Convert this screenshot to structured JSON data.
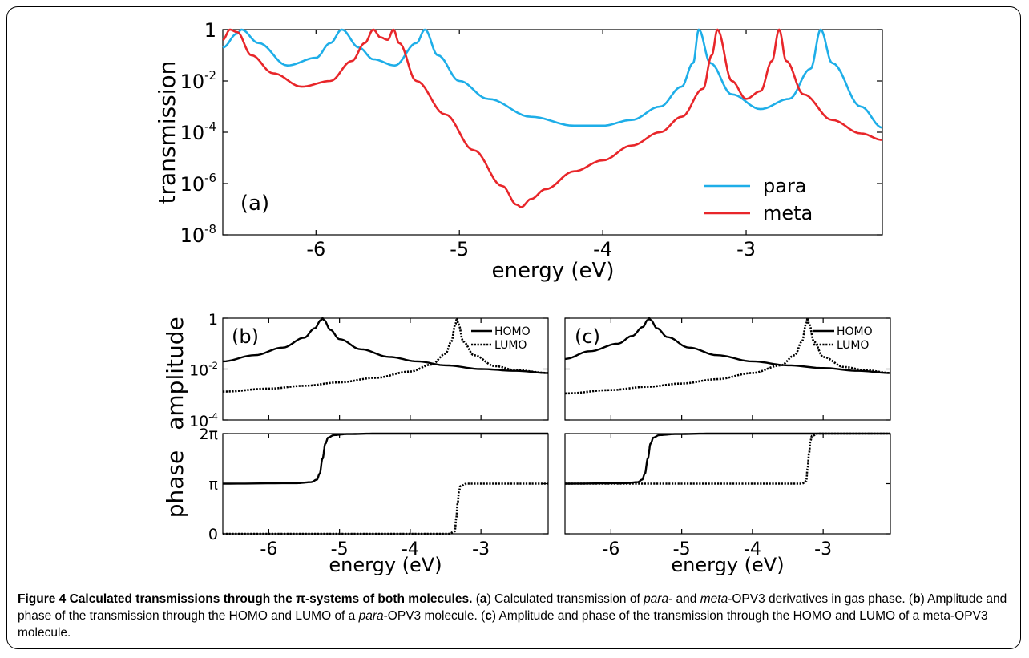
{
  "chart_data": [
    {
      "type": "line",
      "panel_label": "(a)",
      "xlabel": "energy (eV)",
      "ylabel": "transmission",
      "xlim": [
        -6.65,
        -2.05
      ],
      "y_scale": "log",
      "ylim": [
        1e-08,
        1
      ],
      "x_ticks": [
        "-6",
        "-5",
        "-4",
        "-3"
      ],
      "y_ticks": [
        {
          "base": "1",
          "exp": ""
        },
        {
          "base": "10",
          "exp": "-2"
        },
        {
          "base": "10",
          "exp": "-4"
        },
        {
          "base": "10",
          "exp": "-6"
        },
        {
          "base": "10",
          "exp": "-8"
        }
      ],
      "legend_position": "bottom-right",
      "series": [
        {
          "name": "para",
          "color": "#1eaee8",
          "x": [
            -6.65,
            -6.55,
            -6.52,
            -6.4,
            -6.2,
            -6.0,
            -5.9,
            -5.82,
            -5.7,
            -5.6,
            -5.45,
            -5.3,
            -5.24,
            -5.15,
            -5.0,
            -4.8,
            -4.5,
            -4.2,
            -4.0,
            -3.8,
            -3.6,
            -3.45,
            -3.37,
            -3.33,
            -3.25,
            -3.1,
            -2.9,
            -2.7,
            -2.55,
            -2.48,
            -2.4,
            -2.2,
            -2.05
          ],
          "y": [
            0.2,
            0.7,
            1.0,
            0.3,
            0.04,
            0.08,
            0.3,
            1.0,
            0.2,
            0.07,
            0.04,
            0.3,
            1.0,
            0.1,
            0.01,
            0.002,
            0.0004,
            0.00018,
            0.00018,
            0.0003,
            0.001,
            0.006,
            0.05,
            1.0,
            0.05,
            0.003,
            0.0008,
            0.002,
            0.03,
            1.0,
            0.05,
            0.001,
            0.00015
          ]
        },
        {
          "name": "meta",
          "color": "#e8262a",
          "x": [
            -6.65,
            -6.6,
            -6.55,
            -6.45,
            -6.3,
            -6.1,
            -5.9,
            -5.75,
            -5.66,
            -5.6,
            -5.55,
            -5.5,
            -5.46,
            -5.42,
            -5.3,
            -5.1,
            -4.9,
            -4.7,
            -4.6,
            -4.57,
            -4.5,
            -4.4,
            -4.2,
            -4.0,
            -3.8,
            -3.6,
            -3.45,
            -3.3,
            -3.24,
            -3.2,
            -3.1,
            -3.0,
            -2.9,
            -2.82,
            -2.77,
            -2.72,
            -2.6,
            -2.4,
            -2.2,
            -2.05
          ],
          "y": [
            0.4,
            1.0,
            0.8,
            0.1,
            0.02,
            0.006,
            0.01,
            0.06,
            0.3,
            1.0,
            0.5,
            0.4,
            1.0,
            0.3,
            0.01,
            0.0005,
            2e-05,
            8e-07,
            1.5e-07,
            1.2e-07,
            2.5e-07,
            6e-07,
            3e-06,
            8e-06,
            3e-05,
            0.0001,
            0.0004,
            0.005,
            0.1,
            1.0,
            0.01,
            0.002,
            0.004,
            0.06,
            1.0,
            0.06,
            0.003,
            0.0003,
            9e-05,
            5e-05
          ]
        }
      ]
    },
    {
      "type": "line",
      "panel_label": "(b)",
      "xlabel": "energy (eV)",
      "ylabel_top": "amplitude",
      "ylabel_bottom": "phase",
      "xlim": [
        -6.65,
        -2.05
      ],
      "x_ticks": [
        "-6",
        "-5",
        "-4",
        "-3"
      ],
      "amplitude_y_scale": "log",
      "amplitude_ylim": [
        0.0001,
        1
      ],
      "amplitude_y_ticks": [
        {
          "base": "1",
          "exp": ""
        },
        {
          "base": "10",
          "exp": "-2"
        },
        {
          "base": "10",
          "exp": "-4"
        }
      ],
      "phase_y_ticks": [
        "2π",
        "π",
        "0"
      ],
      "legend_position": "top-right",
      "amplitude_series": [
        {
          "name": "HOMO",
          "style": "solid",
          "x": [
            -6.65,
            -6.2,
            -5.8,
            -5.5,
            -5.35,
            -5.26,
            -5.24,
            -5.22,
            -5.13,
            -5.0,
            -4.7,
            -4.3,
            -3.9,
            -3.5,
            -3.0,
            -2.5,
            -2.05
          ],
          "y": [
            0.02,
            0.035,
            0.07,
            0.17,
            0.4,
            0.85,
            1.0,
            0.85,
            0.35,
            0.15,
            0.06,
            0.03,
            0.02,
            0.014,
            0.01,
            0.0085,
            0.007
          ]
        },
        {
          "name": "LUMO",
          "style": "dotted",
          "x": [
            -6.65,
            -6.0,
            -5.5,
            -5.0,
            -4.5,
            -4.0,
            -3.7,
            -3.5,
            -3.42,
            -3.36,
            -3.34,
            -3.32,
            -3.25,
            -3.1,
            -2.8,
            -2.5,
            -2.05
          ],
          "y": [
            0.0013,
            0.0017,
            0.0022,
            0.003,
            0.0045,
            0.008,
            0.015,
            0.04,
            0.12,
            0.6,
            1.0,
            0.6,
            0.12,
            0.035,
            0.013,
            0.009,
            0.007
          ]
        }
      ],
      "phase_series": [
        {
          "name": "HOMO",
          "style": "solid",
          "x": [
            -6.65,
            -5.6,
            -5.4,
            -5.32,
            -5.28,
            -5.24,
            -5.2,
            -5.16,
            -5.08,
            -4.9,
            -4.5,
            -2.05
          ],
          "y_pi": [
            1.0,
            1.01,
            1.03,
            1.08,
            1.2,
            1.5,
            1.8,
            1.92,
            1.97,
            1.99,
            2.0,
            2.0
          ]
        },
        {
          "name": "LUMO",
          "style": "dotted",
          "x": [
            -6.65,
            -3.45,
            -3.37,
            -3.35,
            -3.33,
            -3.31,
            -3.29,
            -3.2,
            -2.05
          ],
          "y_pi": [
            0.0,
            0.0,
            0.05,
            0.3,
            0.6,
            0.85,
            0.95,
            1.0,
            1.0
          ]
        }
      ]
    },
    {
      "type": "line",
      "panel_label": "(c)",
      "xlabel": "energy (eV)",
      "xlim": [
        -6.65,
        -2.05
      ],
      "x_ticks": [
        "-6",
        "-5",
        "-4",
        "-3"
      ],
      "amplitude_y_scale": "log",
      "amplitude_ylim": [
        0.0001,
        1
      ],
      "legend_position": "top-right",
      "amplitude_series": [
        {
          "name": "HOMO",
          "style": "solid",
          "x": [
            -6.65,
            -6.3,
            -5.9,
            -5.7,
            -5.55,
            -5.48,
            -5.46,
            -5.44,
            -5.35,
            -5.2,
            -4.9,
            -4.5,
            -4.0,
            -3.5,
            -3.0,
            -2.5,
            -2.05
          ],
          "y": [
            0.025,
            0.05,
            0.1,
            0.2,
            0.45,
            0.85,
            1.0,
            0.85,
            0.4,
            0.18,
            0.07,
            0.035,
            0.02,
            0.014,
            0.011,
            0.0085,
            0.007
          ]
        },
        {
          "name": "LUMO",
          "style": "dotted",
          "x": [
            -6.65,
            -6.0,
            -5.5,
            -5.0,
            -4.5,
            -4.0,
            -3.6,
            -3.4,
            -3.3,
            -3.24,
            -3.22,
            -3.2,
            -3.13,
            -3.0,
            -2.7,
            -2.4,
            -2.05
          ],
          "y": [
            0.0011,
            0.0015,
            0.002,
            0.0027,
            0.004,
            0.007,
            0.014,
            0.035,
            0.12,
            0.6,
            1.0,
            0.6,
            0.12,
            0.03,
            0.012,
            0.009,
            0.007
          ]
        }
      ],
      "phase_series": [
        {
          "name": "HOMO",
          "style": "solid",
          "x": [
            -6.65,
            -5.8,
            -5.62,
            -5.56,
            -5.52,
            -5.48,
            -5.44,
            -5.4,
            -5.32,
            -5.1,
            -4.6,
            -2.05
          ],
          "y_pi": [
            1.0,
            1.01,
            1.03,
            1.08,
            1.2,
            1.5,
            1.8,
            1.92,
            1.97,
            1.99,
            2.0,
            2.0
          ]
        },
        {
          "name": "LUMO",
          "style": "dotted",
          "x": [
            -6.65,
            -3.3,
            -3.24,
            -3.22,
            -3.2,
            -3.18,
            -3.16,
            -3.08,
            -2.05
          ],
          "y_pi": [
            1.0,
            1.0,
            1.05,
            1.3,
            1.6,
            1.85,
            1.95,
            2.0,
            2.0
          ]
        }
      ]
    }
  ],
  "caption": {
    "figure_label": "Figure 4",
    "title": "Calculated transmissions through the π-systems of both molecules.",
    "parts": [
      {
        "text": " (",
        "style": "normal"
      },
      {
        "text": "a",
        "style": "bold"
      },
      {
        "text": ") Calculated transmission of ",
        "style": "normal"
      },
      {
        "text": "para",
        "style": "italic"
      },
      {
        "text": "- and ",
        "style": "normal"
      },
      {
        "text": "meta",
        "style": "italic"
      },
      {
        "text": "-OPV3 derivatives in gas phase. (",
        "style": "normal"
      },
      {
        "text": "b",
        "style": "bold"
      },
      {
        "text": ") Amplitude and phase of the transmission through the HOMO and LUMO of a ",
        "style": "normal"
      },
      {
        "text": "para",
        "style": "italic"
      },
      {
        "text": "-OPV3 molecule. (",
        "style": "normal"
      },
      {
        "text": "c",
        "style": "bold"
      },
      {
        "text": ") Amplitude and phase of the transmission through the HOMO and LUMO of a meta-OPV3 molecule.",
        "style": "normal"
      }
    ]
  }
}
